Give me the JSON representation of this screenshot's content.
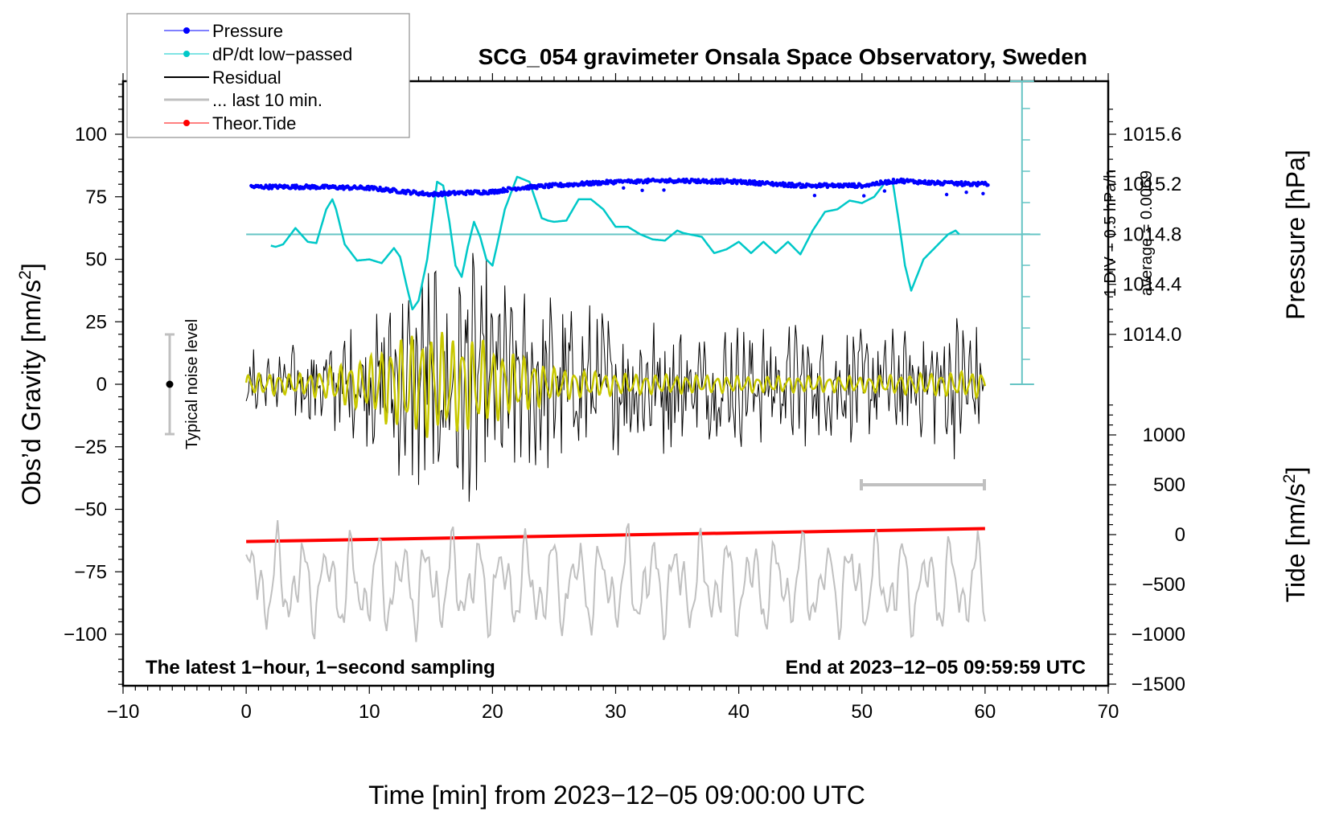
{
  "chart_data": {
    "type": "line",
    "title": "SCG_054 gravimeter Onsala Space Observatory, Sweden",
    "xlabel": "Time [min] from 2023−12−05 09:00:00 UTC",
    "xlim": [
      -10,
      70
    ],
    "x_ticks": [
      -10,
      0,
      10,
      20,
      30,
      40,
      50,
      60,
      70
    ],
    "x_tick_labels": [
      "−10",
      "0",
      "10",
      "20",
      "30",
      "40",
      "50",
      "60",
      "70"
    ],
    "left_axis": {
      "label_main": "Obs’d Gravity [nm/s",
      "label_sup": "2",
      "label_end": "]",
      "ylim": [
        -120,
        121
      ],
      "ticks": [
        100,
        75,
        50,
        25,
        0,
        -25,
        -50,
        -75,
        -100
      ],
      "tick_labels": [
        "100",
        "75",
        "50",
        "25",
        "0",
        "−25",
        "−50",
        "−75",
        "−100"
      ]
    },
    "right_pressure_axis": {
      "label": "Pressure [hPa]",
      "ticks": [
        1015.6,
        1015.2,
        1014.8,
        1014.4,
        1014.0
      ],
      "tick_labels": [
        "1015.6",
        "1015.2",
        "1014.8",
        "1014.4",
        "1014.0"
      ]
    },
    "right_tide_axis": {
      "label_main": "Tide [nm/s",
      "label_sup": "2",
      "label_end": "]",
      "ticks": [
        1000,
        500,
        0,
        -500,
        -1000,
        -1500
      ],
      "tick_labels": [
        "1000",
        "500",
        "0",
        "−500",
        "−1000",
        "−1500"
      ]
    },
    "dpdt_scale": {
      "div_label": "1 DIV = 0.5 hPa/h",
      "average_label": "average = 0.0069",
      "baseline_hpa": 1014.8
    },
    "legend": {
      "position": "top-left",
      "entries": [
        {
          "label": "Pressure",
          "color": "#0000ff",
          "marker": "dot"
        },
        {
          "label": "dP/dt low−passed",
          "color": "#00c8c8",
          "marker": "dot"
        },
        {
          "label": "Residual",
          "color": "#000000",
          "marker": "line"
        },
        {
          "label": "... last 10 min.",
          "color": "#c0c0c0",
          "marker": "line"
        },
        {
          "label": "Theor.Tide",
          "color": "#ff0000",
          "marker": "dot"
        }
      ]
    },
    "annotations": {
      "noise_label": "Typical noise level",
      "noise_range": [
        -20,
        20
      ],
      "bottom_left": "The latest 1−hour, 1−second sampling",
      "bottom_right": "End at 2023−12−05 09:59:59 UTC",
      "last10_bar_range_min": [
        50,
        60
      ]
    },
    "series": [
      {
        "name": "Pressure",
        "axis": "pressure",
        "color": "#0000ff",
        "x": [
          0,
          5,
          10,
          13,
          15,
          17,
          20,
          22,
          25,
          30,
          35,
          40,
          45,
          50,
          53,
          56,
          60
        ],
        "values": [
          1015.18,
          1015.18,
          1015.17,
          1015.14,
          1015.12,
          1015.13,
          1015.14,
          1015.17,
          1015.19,
          1015.22,
          1015.23,
          1015.22,
          1015.19,
          1015.19,
          1015.23,
          1015.21,
          1015.2
        ]
      },
      {
        "name": "dP/dt low-passed",
        "axis": "pressure-scaled",
        "color": "#00c8c8",
        "x": [
          2,
          2.4,
          3,
          4,
          5,
          5.7,
          6.5,
          7,
          7.3,
          8,
          9,
          10,
          11,
          12,
          12.5,
          13,
          13.5,
          14,
          14.7,
          15.5,
          16,
          16.5,
          17,
          17.5,
          18,
          18.5,
          19,
          19.5,
          20,
          20.5,
          21,
          22,
          23,
          24,
          24.5,
          25,
          26,
          27,
          28,
          29,
          30,
          31,
          32,
          33,
          34,
          35,
          35.5,
          36,
          37,
          38,
          39,
          40,
          41,
          42,
          43,
          44,
          45,
          46,
          47,
          48,
          49,
          50,
          51,
          52,
          52.5,
          53,
          53.5,
          54,
          55,
          56,
          57,
          57.6,
          58
        ],
        "values": [
          1014.71,
          1014.7,
          1014.72,
          1014.85,
          1014.74,
          1014.73,
          1015.0,
          1015.08,
          1015.0,
          1014.72,
          1014.59,
          1014.6,
          1014.57,
          1014.69,
          1014.62,
          1014.4,
          1014.2,
          1014.27,
          1014.6,
          1015.22,
          1015.19,
          1014.9,
          1014.55,
          1014.46,
          1014.7,
          1014.9,
          1014.78,
          1014.6,
          1014.55,
          1014.77,
          1015.0,
          1015.26,
          1015.22,
          1014.93,
          1014.91,
          1014.9,
          1014.91,
          1015.08,
          1015.08,
          1015.0,
          1014.86,
          1014.86,
          1014.8,
          1014.76,
          1014.75,
          1014.83,
          1014.81,
          1014.8,
          1014.78,
          1014.65,
          1014.68,
          1014.74,
          1014.65,
          1014.74,
          1014.65,
          1014.74,
          1014.64,
          1014.83,
          1014.98,
          1015.0,
          1015.07,
          1015.05,
          1015.1,
          1015.23,
          1015.22,
          1014.9,
          1014.55,
          1014.35,
          1014.6,
          1014.7,
          1014.8,
          1014.83,
          1014.79
        ]
      },
      {
        "name": "Residual",
        "axis": "gravity",
        "color": "#000000",
        "envelope_x": [
          0,
          5,
          8,
          10,
          12,
          14,
          16,
          18,
          20,
          22,
          25,
          30,
          35,
          40,
          45,
          50,
          55,
          57.5,
          60
        ],
        "envelope_amplitude": [
          12,
          13,
          18,
          20,
          28,
          38,
          42,
          45,
          40,
          34,
          30,
          24,
          22,
          20,
          20,
          18,
          18,
          24,
          18
        ]
      },
      {
        "name": "Residual low-passed (yellow)",
        "axis": "gravity",
        "color": "#c8c800",
        "envelope_x": [
          0,
          5,
          8,
          10,
          11,
          13,
          15,
          17,
          19,
          21,
          23,
          25,
          30,
          40,
          50,
          55,
          60
        ],
        "envelope_amplitude": [
          4,
          4,
          8,
          10,
          14,
          18,
          20,
          18,
          17,
          12,
          10,
          6,
          4,
          3,
          3,
          4,
          5
        ]
      },
      {
        "name": "... last 10 min.",
        "axis": "gravity-offset",
        "color": "#c0c0c0",
        "range_min": [
          0,
          60
        ],
        "approx_center": -80,
        "approx_amplitude": 15
      },
      {
        "name": "Theor.Tide",
        "axis": "tide",
        "color": "#ff0000",
        "x": [
          0,
          60
        ],
        "values": [
          -70,
          60
        ]
      }
    ]
  }
}
